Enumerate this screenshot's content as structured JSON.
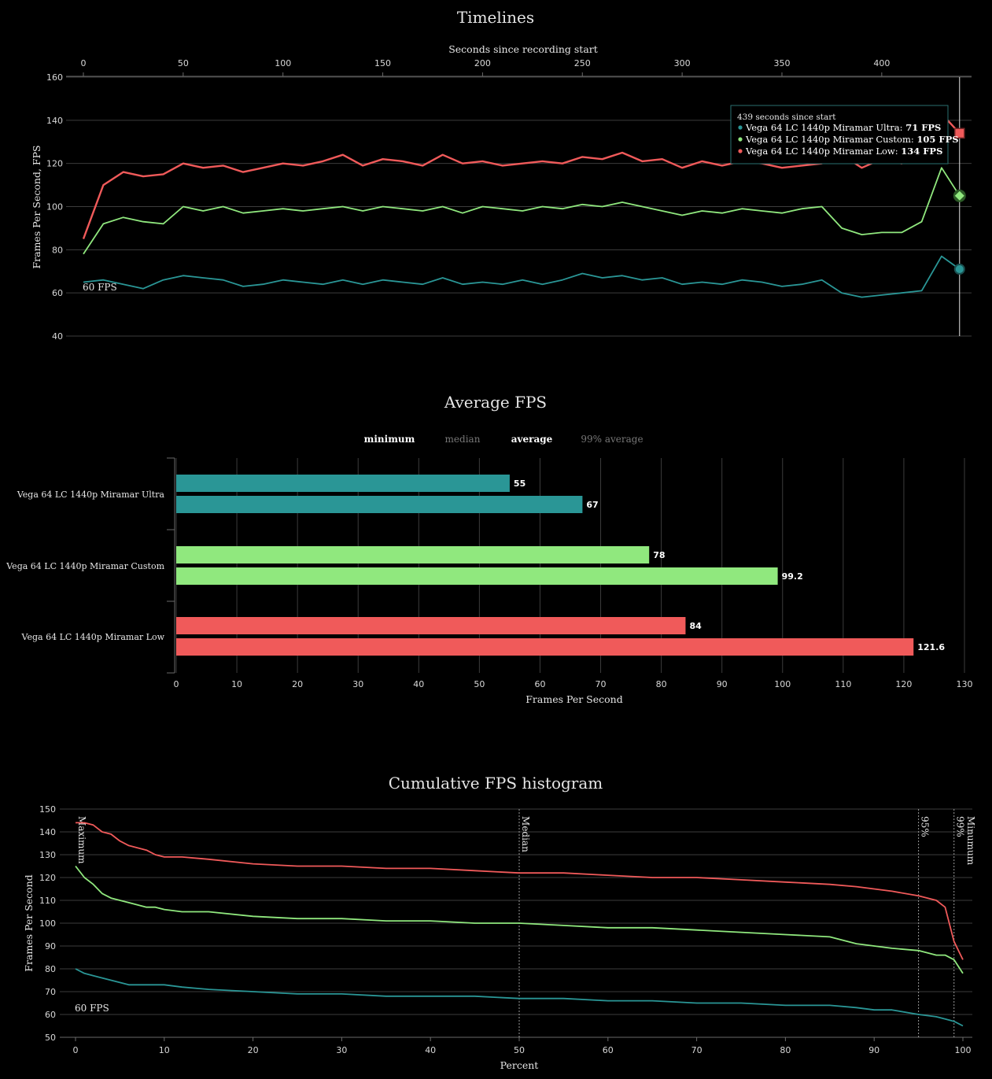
{
  "colors": {
    "ultra": "#2a9696",
    "custom": "#90e87e",
    "low": "#f05a5a"
  },
  "timelines": {
    "title": "Timelines",
    "xlabel": "Seconds since recording start",
    "ylabel": "Frames Per Second, FPS",
    "ref_label": "60 FPS",
    "tooltip": {
      "header": "439 seconds since start",
      "rows": [
        {
          "name": "Vega 64 LC 1440p Miramar Ultra:",
          "value": "71 FPS"
        },
        {
          "name": "Vega 64 LC 1440p Miramar Custom:",
          "value": "105 FPS"
        },
        {
          "name": "Vega 64 LC 1440p Miramar Low:",
          "value": "134 FPS"
        }
      ]
    }
  },
  "average": {
    "title": "Average FPS",
    "legend": [
      {
        "label": "minimum",
        "active": true
      },
      {
        "label": "median",
        "active": false
      },
      {
        "label": "average",
        "active": true
      },
      {
        "label": "99% average",
        "active": false
      }
    ],
    "xlabel": "Frames Per Second"
  },
  "histogram": {
    "title": "Cumulative FPS histogram",
    "xlabel": "Percent",
    "ylabel": "Frames Per Second",
    "ref_label": "60 FPS",
    "markers": [
      {
        "label": "Maximum",
        "pct": 0
      },
      {
        "label": "Median",
        "pct": 50
      },
      {
        "label": "95%",
        "pct": 95
      },
      {
        "label": "99%",
        "pct": 99
      },
      {
        "label": "Minumum",
        "pct": 100
      }
    ]
  },
  "chart_data": [
    {
      "type": "line",
      "title": "Timelines",
      "xlabel": "Seconds since recording start",
      "ylabel": "Frames Per Second, FPS",
      "xlim": [
        0,
        445
      ],
      "ylim": [
        40,
        160
      ],
      "xticks": [
        0,
        50,
        100,
        150,
        200,
        250,
        300,
        350,
        400
      ],
      "yticks": [
        40,
        60,
        80,
        100,
        120,
        140,
        160
      ],
      "cursor_x": 439,
      "x": [
        0,
        10,
        20,
        30,
        40,
        50,
        60,
        70,
        80,
        90,
        100,
        110,
        120,
        130,
        140,
        150,
        160,
        170,
        180,
        190,
        200,
        210,
        220,
        230,
        240,
        250,
        260,
        270,
        280,
        290,
        300,
        310,
        320,
        330,
        340,
        350,
        360,
        370,
        380,
        390,
        400,
        410,
        420,
        430,
        439
      ],
      "series": [
        {
          "name": "Vega 64 LC 1440p Miramar Ultra",
          "color_key": "ultra",
          "values": [
            65,
            66,
            64,
            62,
            66,
            68,
            67,
            66,
            63,
            64,
            66,
            65,
            64,
            66,
            64,
            66,
            65,
            64,
            67,
            64,
            65,
            64,
            66,
            64,
            66,
            69,
            67,
            68,
            66,
            67,
            64,
            65,
            64,
            66,
            65,
            63,
            64,
            66,
            60,
            58,
            59,
            60,
            61,
            77,
            71
          ]
        },
        {
          "name": "Vega 64 LC 1440p Miramar Custom",
          "color_key": "custom",
          "values": [
            78,
            92,
            95,
            93,
            92,
            100,
            98,
            100,
            97,
            98,
            99,
            98,
            99,
            100,
            98,
            100,
            99,
            98,
            100,
            97,
            100,
            99,
            98,
            100,
            99,
            101,
            100,
            102,
            100,
            98,
            96,
            98,
            97,
            99,
            98,
            97,
            99,
            100,
            90,
            87,
            88,
            88,
            93,
            118,
            105
          ]
        },
        {
          "name": "Vega 64 LC 1440p Miramar Low",
          "color_key": "low",
          "values": [
            85,
            110,
            116,
            114,
            115,
            120,
            118,
            119,
            116,
            118,
            120,
            119,
            121,
            124,
            119,
            122,
            121,
            119,
            124,
            120,
            121,
            119,
            120,
            121,
            120,
            123,
            122,
            125,
            121,
            122,
            118,
            121,
            119,
            121,
            120,
            118,
            119,
            120,
            124,
            118,
            122,
            120,
            125,
            143,
            134
          ]
        }
      ]
    },
    {
      "type": "bar",
      "title": "Average FPS",
      "xlabel": "Frames Per Second",
      "xlim": [
        0,
        130
      ],
      "xticks": [
        0,
        10,
        20,
        30,
        40,
        50,
        60,
        70,
        80,
        90,
        100,
        110,
        120,
        130
      ],
      "categories": [
        "Vega 64 LC 1440p Miramar Ultra",
        "Vega 64 LC 1440p Miramar Custom",
        "Vega 64 LC 1440p Miramar Low"
      ],
      "color_keys": [
        "ultra",
        "custom",
        "low"
      ],
      "series": [
        {
          "name": "minimum",
          "values": [
            55,
            78,
            84
          ]
        },
        {
          "name": "average",
          "values": [
            67,
            99.2,
            121.6
          ]
        }
      ]
    },
    {
      "type": "line",
      "title": "Cumulative FPS histogram",
      "xlabel": "Percent",
      "ylabel": "Frames Per Second",
      "xlim": [
        0,
        100
      ],
      "ylim": [
        50,
        150
      ],
      "xticks": [
        0,
        10,
        20,
        30,
        40,
        50,
        60,
        70,
        80,
        90,
        100
      ],
      "yticks": [
        50,
        60,
        70,
        80,
        90,
        100,
        110,
        120,
        130,
        140,
        150
      ],
      "x": [
        0,
        1,
        2,
        3,
        4,
        5,
        6,
        8,
        9,
        10,
        12,
        15,
        20,
        25,
        30,
        35,
        40,
        45,
        50,
        55,
        60,
        65,
        70,
        75,
        80,
        85,
        88,
        90,
        92,
        95,
        97,
        98,
        99,
        100
      ],
      "series": [
        {
          "name": "Vega 64 LC 1440p Miramar Ultra",
          "color_key": "ultra",
          "values": [
            80,
            78,
            77,
            76,
            75,
            74,
            73,
            73,
            73,
            73,
            72,
            71,
            70,
            69,
            69,
            68,
            68,
            68,
            67,
            67,
            66,
            66,
            65,
            65,
            64,
            64,
            63,
            62,
            62,
            60,
            59,
            58,
            57,
            55
          ]
        },
        {
          "name": "Vega 64 LC 1440p Miramar Custom",
          "color_key": "custom",
          "values": [
            125,
            120,
            117,
            113,
            111,
            110,
            109,
            107,
            107,
            106,
            105,
            105,
            103,
            102,
            102,
            101,
            101,
            100,
            100,
            99,
            98,
            98,
            97,
            96,
            95,
            94,
            91,
            90,
            89,
            88,
            86,
            86,
            84,
            78
          ]
        },
        {
          "name": "Vega 64 LC 1440p Miramar Low",
          "color_key": "low",
          "values": [
            144,
            144,
            143,
            140,
            139,
            136,
            134,
            132,
            130,
            129,
            129,
            128,
            126,
            125,
            125,
            124,
            124,
            123,
            122,
            122,
            121,
            120,
            120,
            119,
            118,
            117,
            116,
            115,
            114,
            112,
            110,
            107,
            92,
            84
          ]
        }
      ]
    }
  ]
}
